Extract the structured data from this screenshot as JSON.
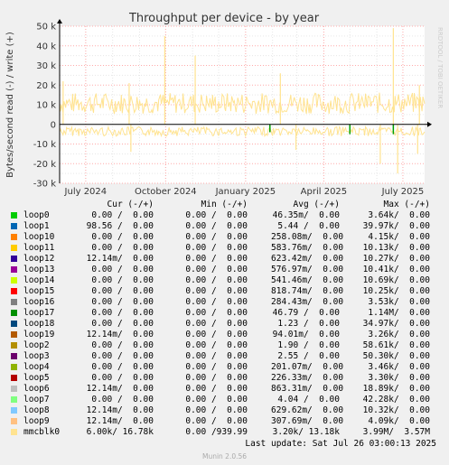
{
  "chart_data": {
    "type": "area",
    "title": "Throughput per device - by year",
    "ylabel": "Bytes/second read (-) / write (+)",
    "watermark": "RRDTOOL / TOBI OETIKER",
    "ylim": [
      -30000,
      50000
    ],
    "yticks": [
      {
        "v": 50000,
        "label": "50 k"
      },
      {
        "v": 40000,
        "label": "40 k"
      },
      {
        "v": 30000,
        "label": "30 k"
      },
      {
        "v": 20000,
        "label": "20 k"
      },
      {
        "v": 10000,
        "label": "10 k"
      },
      {
        "v": 0,
        "label": "0"
      },
      {
        "v": -10000,
        "label": "-10 k"
      },
      {
        "v": -20000,
        "label": "-20 k"
      },
      {
        "v": -30000,
        "label": "-30 k"
      }
    ],
    "xrange": [
      "2024-06-01",
      "2025-07-26"
    ],
    "xticks": [
      {
        "date": "2024-07-01",
        "label": "July 2024"
      },
      {
        "date": "2024-10-01",
        "label": "October 2024"
      },
      {
        "date": "2025-01-01",
        "label": "January 2025"
      },
      {
        "date": "2025-04-01",
        "label": "April 2025"
      },
      {
        "date": "2025-07-01",
        "label": "July 2025"
      }
    ],
    "grid": true,
    "colors": {
      "background": "#f0f0f0",
      "plot": "#ffffff",
      "grid_minor": "#e6e6e6",
      "grid_major": "#ffaaaa",
      "baseline": "#000000",
      "mmcblk0": "#ffe390",
      "loop_spikes": "#00a000"
    },
    "series": [
      {
        "name": "mmcblk0",
        "typical_write": 12000,
        "typical_read": -4000,
        "write_spikes": [
          {
            "date": "2024-09-30",
            "value": 45000
          },
          {
            "date": "2024-11-04",
            "value": 35000
          },
          {
            "date": "2025-06-20",
            "value": 49000
          },
          {
            "date": "2024-06-05",
            "value": 22000
          },
          {
            "date": "2024-08-20",
            "value": 21000
          },
          {
            "date": "2025-02-10",
            "value": 26000
          },
          {
            "date": "2025-07-20",
            "value": 20000
          }
        ],
        "read_spikes": [
          {
            "date": "2025-06-25",
            "value": -25000
          },
          {
            "date": "2025-06-05",
            "value": -20000
          },
          {
            "date": "2024-08-22",
            "value": -14000
          },
          {
            "date": "2025-02-28",
            "value": -13000
          },
          {
            "date": "2025-07-18",
            "value": -15000
          }
        ]
      },
      {
        "name": "loop_reads",
        "read_spikes": [
          {
            "date": "2025-01-29",
            "value": -4000
          },
          {
            "date": "2025-05-01",
            "value": -5000
          },
          {
            "date": "2025-06-20",
            "value": -5000
          }
        ]
      }
    ]
  },
  "legend": {
    "headers": {
      "cur": "Cur (-/+)",
      "min": "Min (-/+)",
      "avg": "Avg (-/+)",
      "max": "Max (-/+)"
    },
    "rows": [
      {
        "name": "loop0",
        "color": "#00cc00",
        "cur": "0.00 /  0.00",
        "min": "0.00 /  0.00",
        "avg": "46.35m/  0.00",
        "max": "3.64k/  0.00"
      },
      {
        "name": "loop1",
        "color": "#0066b3",
        "cur": "98.56 /  0.00",
        "min": "0.00 /  0.00",
        "avg": "5.44 /  0.00",
        "max": "39.97k/  0.00"
      },
      {
        "name": "loop10",
        "color": "#ff8000",
        "cur": "0.00 /  0.00",
        "min": "0.00 /  0.00",
        "avg": "258.08m/  0.00",
        "max": "4.15k/  0.00"
      },
      {
        "name": "loop11",
        "color": "#ffcc00",
        "cur": "0.00 /  0.00",
        "min": "0.00 /  0.00",
        "avg": "583.76m/  0.00",
        "max": "10.13k/  0.00"
      },
      {
        "name": "loop12",
        "color": "#330099",
        "cur": "12.14m/  0.00",
        "min": "0.00 /  0.00",
        "avg": "623.42m/  0.00",
        "max": "10.27k/  0.00"
      },
      {
        "name": "loop13",
        "color": "#990099",
        "cur": "0.00 /  0.00",
        "min": "0.00 /  0.00",
        "avg": "576.97m/  0.00",
        "max": "10.41k/  0.00"
      },
      {
        "name": "loop14",
        "color": "#ccff00",
        "cur": "0.00 /  0.00",
        "min": "0.00 /  0.00",
        "avg": "541.46m/  0.00",
        "max": "10.69k/  0.00"
      },
      {
        "name": "loop15",
        "color": "#ff0000",
        "cur": "0.00 /  0.00",
        "min": "0.00 /  0.00",
        "avg": "818.74m/  0.00",
        "max": "10.25k/  0.00"
      },
      {
        "name": "loop16",
        "color": "#808080",
        "cur": "0.00 /  0.00",
        "min": "0.00 /  0.00",
        "avg": "284.43m/  0.00",
        "max": "3.53k/  0.00"
      },
      {
        "name": "loop17",
        "color": "#008f00",
        "cur": "0.00 /  0.00",
        "min": "0.00 /  0.00",
        "avg": "46.79 /  0.00",
        "max": "1.14M/  0.00"
      },
      {
        "name": "loop18",
        "color": "#00487d",
        "cur": "0.00 /  0.00",
        "min": "0.00 /  0.00",
        "avg": "1.23 /  0.00",
        "max": "34.97k/  0.00"
      },
      {
        "name": "loop19",
        "color": "#b35a00",
        "cur": "12.14m/  0.00",
        "min": "0.00 /  0.00",
        "avg": "94.01m/  0.00",
        "max": "3.26k/  0.00"
      },
      {
        "name": "loop2",
        "color": "#b38f00",
        "cur": "0.00 /  0.00",
        "min": "0.00 /  0.00",
        "avg": "1.90 /  0.00",
        "max": "58.61k/  0.00"
      },
      {
        "name": "loop3",
        "color": "#6b006b",
        "cur": "0.00 /  0.00",
        "min": "0.00 /  0.00",
        "avg": "2.55 /  0.00",
        "max": "50.30k/  0.00"
      },
      {
        "name": "loop4",
        "color": "#8fb300",
        "cur": "0.00 /  0.00",
        "min": "0.00 /  0.00",
        "avg": "201.07m/  0.00",
        "max": "3.46k/  0.00"
      },
      {
        "name": "loop5",
        "color": "#b30000",
        "cur": "0.00 /  0.00",
        "min": "0.00 /  0.00",
        "avg": "226.33m/  0.00",
        "max": "3.30k/  0.00"
      },
      {
        "name": "loop6",
        "color": "#bebebe",
        "cur": "12.14m/  0.00",
        "min": "0.00 /  0.00",
        "avg": "863.31m/  0.00",
        "max": "18.89k/  0.00"
      },
      {
        "name": "loop7",
        "color": "#80ff80",
        "cur": "0.00 /  0.00",
        "min": "0.00 /  0.00",
        "avg": "4.04 /  0.00",
        "max": "42.28k/  0.00"
      },
      {
        "name": "loop8",
        "color": "#80c9ff",
        "cur": "12.14m/  0.00",
        "min": "0.00 /  0.00",
        "avg": "629.62m/  0.00",
        "max": "10.32k/  0.00"
      },
      {
        "name": "loop9",
        "color": "#ffc080",
        "cur": "12.14m/  0.00",
        "min": "0.00 /  0.00",
        "avg": "307.69m/  0.00",
        "max": "4.09k/  0.00"
      },
      {
        "name": "mmcblk0",
        "color": "#ffe390",
        "cur": "6.00k/ 16.78k",
        "min": "0.00 /939.99",
        "avg": "3.20k/ 13.18k",
        "max": "3.99M/  3.57M"
      }
    ]
  },
  "footer": {
    "last_update": "Last update: Sat Jul 26 03:00:13 2025",
    "munin": "Munin 2.0.56"
  }
}
